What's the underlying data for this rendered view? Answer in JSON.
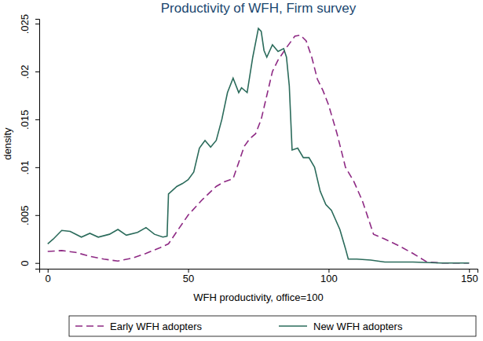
{
  "chart_data": {
    "type": "line",
    "title": "Productivity of WFH, Firm survey",
    "x_label": "WFH productivity, office=100",
    "y_label": "density",
    "xlim": [
      -3,
      153
    ],
    "xticks": [
      0,
      50,
      100,
      150
    ],
    "ylim": [
      -0.0006,
      0.0255
    ],
    "yticks": [
      0,
      {
        "value": 0.005,
        "label": ".005"
      },
      {
        "value": 0.01,
        "label": ".01"
      },
      {
        "value": 0.015,
        "label": ".015"
      },
      {
        "value": 0.02,
        "label": ".02"
      },
      {
        "value": 0.025,
        "label": ".025"
      }
    ],
    "grid": false,
    "legend": "bottom",
    "series": [
      {
        "name": "Early WFH adopters",
        "color": "#8e2a84",
        "line_style": "dashed",
        "x": [
          0,
          5,
          10,
          15,
          20,
          25,
          30,
          35,
          40,
          43,
          46,
          50,
          55,
          60,
          63,
          66,
          68,
          70,
          72,
          74,
          76,
          78,
          80,
          82,
          85,
          88,
          90,
          92,
          94,
          96,
          98,
          100,
          103,
          106,
          109,
          112,
          116,
          120,
          125,
          130,
          135,
          140,
          150
        ],
        "values": [
          0.0012,
          0.0013,
          0.0011,
          0.0007,
          0.0004,
          0.0002,
          0.0005,
          0.001,
          0.0016,
          0.002,
          0.0033,
          0.005,
          0.0066,
          0.008,
          0.0085,
          0.0088,
          0.0105,
          0.0122,
          0.013,
          0.0135,
          0.015,
          0.0175,
          0.02,
          0.0212,
          0.0225,
          0.0237,
          0.0238,
          0.0232,
          0.0215,
          0.0192,
          0.018,
          0.0165,
          0.0135,
          0.01,
          0.0085,
          0.0065,
          0.003,
          0.0025,
          0.0018,
          0.001,
          0.0001,
          0,
          0
        ]
      },
      {
        "name": "New WFH adopters",
        "color": "#2b6b5b",
        "line_style": "solid",
        "x": [
          0,
          2,
          5,
          8,
          12,
          15,
          18,
          22,
          25,
          28,
          32,
          35,
          38,
          41,
          42.5,
          43,
          46,
          48,
          50,
          52,
          54,
          56,
          58,
          60,
          62,
          64,
          66,
          68,
          69,
          71,
          73,
          75,
          76,
          77,
          78,
          80,
          82,
          84,
          85,
          86,
          87,
          89,
          91,
          93,
          95,
          97,
          99,
          101,
          104,
          106,
          107,
          110,
          115,
          120,
          130,
          140,
          150
        ],
        "values": [
          0.002,
          0.0025,
          0.0034,
          0.0033,
          0.0027,
          0.0031,
          0.0027,
          0.003,
          0.0035,
          0.0029,
          0.0032,
          0.0037,
          0.003,
          0.0027,
          0.0028,
          0.0072,
          0.008,
          0.0083,
          0.0087,
          0.0095,
          0.012,
          0.0128,
          0.0121,
          0.0128,
          0.015,
          0.0178,
          0.0193,
          0.0178,
          0.0183,
          0.0178,
          0.0215,
          0.0245,
          0.0242,
          0.0222,
          0.0215,
          0.0228,
          0.0221,
          0.0224,
          0.0215,
          0.0185,
          0.0118,
          0.012,
          0.011,
          0.011,
          0.01,
          0.0075,
          0.0061,
          0.0055,
          0.0035,
          0.0015,
          0.0004,
          0.0004,
          0.0003,
          0.0001,
          0.0001,
          0,
          0
        ]
      }
    ]
  }
}
